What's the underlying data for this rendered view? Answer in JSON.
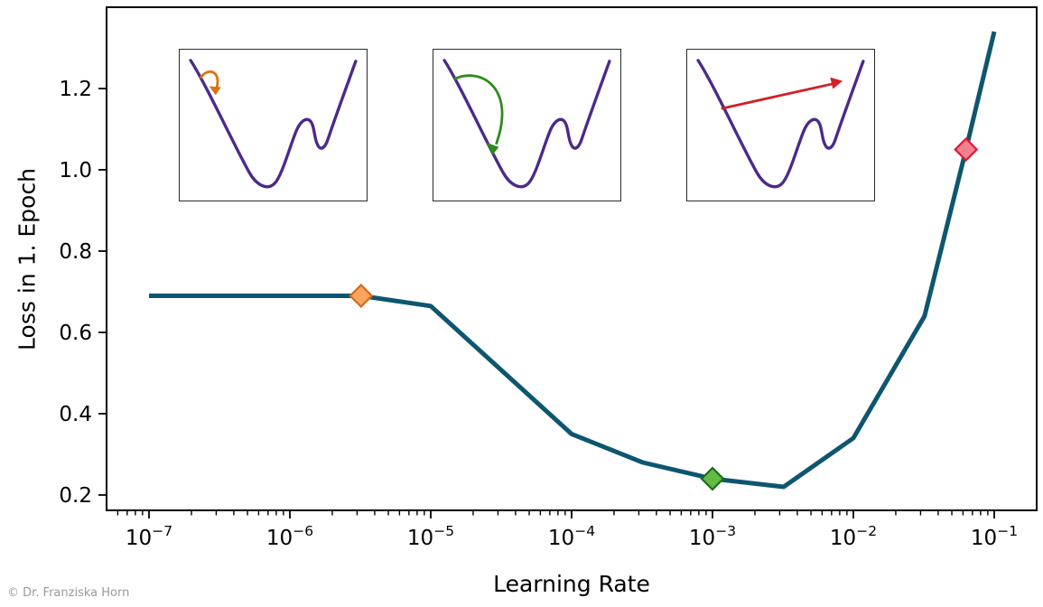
{
  "figure": {
    "xlabel": "Learning Rate",
    "ylabel": "Loss in 1. Epoch",
    "copyright": "© Dr. Franziska Horn"
  },
  "colors": {
    "curve": "#0e5670",
    "axis": "#000000",
    "inset_curve": "#4b2a8a",
    "arrow_small_step": "#d9730f",
    "arrow_good_step": "#2e8b1e",
    "arrow_large_step": "#d12026",
    "copyright_text": "#999999"
  },
  "chart_data": {
    "type": "line",
    "title": "",
    "xlabel": "Learning Rate",
    "ylabel": "Loss in 1. Epoch",
    "x_scale": "log",
    "xlim": [
      5e-08,
      0.2
    ],
    "ylim": [
      0.16,
      1.4
    ],
    "grid": false,
    "legend": "none",
    "x_tick_exponents": [
      -7,
      -6,
      -5,
      -4,
      -3,
      -2,
      -1
    ],
    "y_ticks": [
      0.2,
      0.4,
      0.6,
      0.8,
      1.0,
      1.2
    ],
    "series": [
      {
        "name": "loss-after-1-epoch",
        "color": "#0e5670",
        "points": [
          [
            1e-07,
            0.69
          ],
          [
            3.2e-06,
            0.69
          ],
          [
            1e-05,
            0.665
          ],
          [
            0.0001,
            0.35
          ],
          [
            0.00032,
            0.28
          ],
          [
            0.001,
            0.24
          ],
          [
            0.0032,
            0.22
          ],
          [
            0.01,
            0.34
          ],
          [
            0.032,
            0.64
          ],
          [
            0.063,
            1.05
          ],
          [
            0.1,
            1.34
          ]
        ]
      }
    ],
    "markers": [
      {
        "name": "marker-too-small-lr",
        "x": 3.2e-06,
        "y": 0.69,
        "shape": "diamond",
        "fill": "#fba55c",
        "edge": "#d2691e"
      },
      {
        "name": "marker-good-lr",
        "x": 0.001,
        "y": 0.24,
        "shape": "diamond",
        "fill": "#63bb45",
        "edge": "#1b6e1b"
      },
      {
        "name": "marker-too-large-lr",
        "x": 0.063,
        "y": 1.05,
        "shape": "diamond",
        "fill": "#f5808d",
        "edge": "#e01737"
      }
    ],
    "insets": [
      {
        "name": "inset-small-step",
        "curve_color": "#4b2a8a",
        "arrow_color": "#d9730f"
      },
      {
        "name": "inset-good-step",
        "curve_color": "#4b2a8a",
        "arrow_color": "#2e8b1e"
      },
      {
        "name": "inset-large-step",
        "curve_color": "#4b2a8a",
        "arrow_color": "#d12026"
      }
    ]
  }
}
